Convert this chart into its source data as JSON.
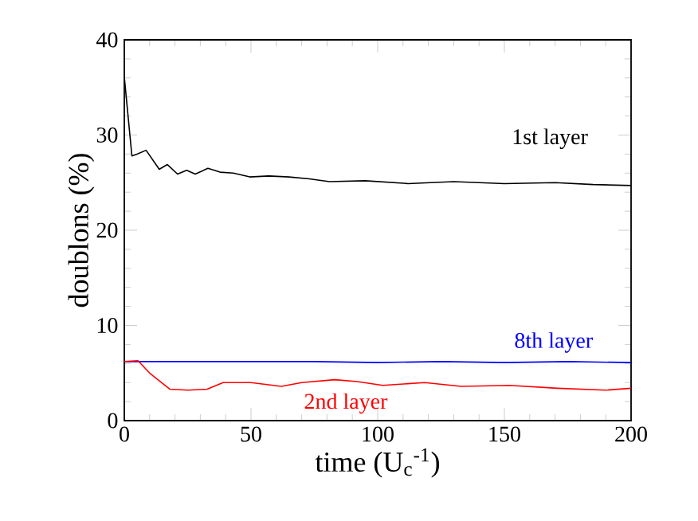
{
  "chart_data": {
    "type": "line",
    "xlabel": "time (U$_{c}$$^{-1}$)",
    "ylabel": "doublons (%)",
    "xlim": [
      0,
      200
    ],
    "ylim": [
      0,
      40
    ],
    "xticks": [
      0,
      50,
      100,
      150,
      200
    ],
    "yticks": [
      0,
      10,
      20,
      30,
      40
    ],
    "grid": false,
    "legend": false,
    "marker": "none",
    "line_style": "solid",
    "series": [
      {
        "name": "1st layer",
        "color": "#000000",
        "x": [
          0,
          3,
          5,
          8.6,
          13.8,
          17,
          21,
          24.6,
          28,
          33,
          37.8,
          43,
          49.5,
          57,
          65,
          73,
          81,
          95,
          112,
          130,
          150,
          170,
          185,
          200
        ],
        "values": [
          36.1,
          27.8,
          28.0,
          28.4,
          26.4,
          26.9,
          25.9,
          26.3,
          25.9,
          26.5,
          26.1,
          26.0,
          25.6,
          25.7,
          25.6,
          25.4,
          25.1,
          25.2,
          24.9,
          25.1,
          24.9,
          25.0,
          24.8,
          24.7
        ]
      },
      {
        "name": "8th layer",
        "color": "#0000ff",
        "x": [
          0,
          25,
          50,
          75,
          100,
          125,
          150,
          175,
          200
        ],
        "values": [
          6.2,
          6.2,
          6.2,
          6.2,
          6.1,
          6.2,
          6.1,
          6.2,
          6.1
        ]
      },
      {
        "name": "2nd layer",
        "color": "#ff0000",
        "x": [
          0,
          5.4,
          10,
          18,
          25,
          32.7,
          39,
          50,
          62,
          70,
          83,
          92,
          102,
          118.6,
          133,
          152,
          171,
          190,
          200
        ],
        "values": [
          6.2,
          6.3,
          5.0,
          3.3,
          3.2,
          3.3,
          4.0,
          4.0,
          3.6,
          4.0,
          4.3,
          4.1,
          3.7,
          4.0,
          3.6,
          3.7,
          3.4,
          3.2,
          3.4
        ]
      }
    ]
  }
}
